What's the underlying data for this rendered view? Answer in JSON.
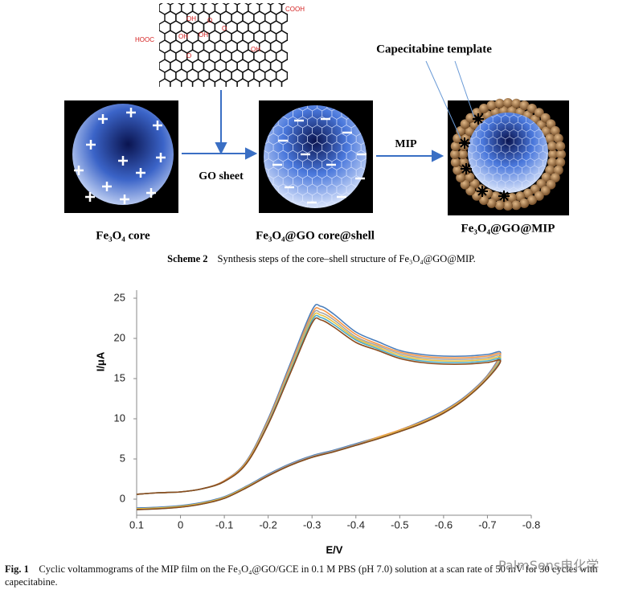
{
  "scheme": {
    "molecule_labels": [
      "COOH",
      "HOOC",
      "OH",
      "OH",
      "OH",
      "OH",
      "O",
      "O",
      "O"
    ],
    "arrow_go": "GO sheet",
    "arrow_mip": "MIP",
    "template_label": "Capecitabine template",
    "stage_labels": [
      "Fe₃O₄ core",
      "Fe₃O₄@GO core@shell",
      "Fe₃O₄@GO@MIP"
    ],
    "caption_tag": "Scheme 2",
    "caption_text": "Synthesis steps of the core–shell structure of Fe₃O₄@GO@MIP."
  },
  "chart_data": {
    "type": "line",
    "y_label": "I/μA",
    "x_label": "E/V",
    "x": [
      0.1,
      0.05,
      0,
      -0.05,
      -0.1,
      -0.15,
      -0.2,
      -0.25,
      -0.3,
      -0.32,
      -0.35,
      -0.4,
      -0.45,
      -0.5,
      -0.55,
      -0.6,
      -0.65,
      -0.7,
      -0.73,
      -0.7,
      -0.65,
      -0.6,
      -0.55,
      -0.5,
      -0.45,
      -0.4,
      -0.35,
      -0.3,
      -0.25,
      -0.2,
      -0.15,
      -0.1,
      -0.05,
      0,
      0.05,
      0.1
    ],
    "xlim": [
      0.1,
      -0.8
    ],
    "xticks": [
      0.1,
      0,
      -0.1,
      -0.2,
      -0.3,
      -0.4,
      -0.5,
      -0.6,
      -0.7,
      -0.8
    ],
    "ylim": [
      -2,
      26
    ],
    "yticks": [
      0,
      5,
      10,
      15,
      20,
      25
    ],
    "series": [
      {
        "color": "#4a7ebb",
        "values": [
          0.6,
          0.8,
          0.9,
          1.3,
          2.3,
          4.7,
          10,
          16.8,
          23.5,
          24,
          23,
          20.8,
          19.6,
          18.5,
          18,
          17.8,
          17.8,
          18,
          18.2,
          15.4,
          12.8,
          11,
          9.7,
          8.6,
          7.7,
          6.9,
          6.1,
          5.4,
          4.4,
          3.1,
          1.6,
          0.3,
          -0.4,
          -0.8,
          -1,
          -1.1
        ]
      },
      {
        "color": "#f79646",
        "values": [
          0.6,
          0.8,
          0.9,
          1.3,
          2.3,
          4.6,
          9.8,
          16.5,
          23.1,
          23.6,
          22.6,
          20.5,
          19.3,
          18.3,
          17.8,
          17.6,
          17.6,
          17.8,
          18,
          15.3,
          12.7,
          10.9,
          9.6,
          8.6,
          7.7,
          6.8,
          6,
          5.3,
          4.3,
          3,
          1.5,
          0.2,
          -0.5,
          -0.9,
          -1.1,
          -1.2
        ]
      },
      {
        "color": "#a5a5a5",
        "values": [
          0.6,
          0.8,
          0.9,
          1.3,
          2.2,
          4.5,
          9.6,
          16.2,
          22.8,
          23.2,
          22.3,
          20.2,
          19.1,
          18.1,
          17.6,
          17.4,
          17.4,
          17.6,
          17.8,
          15.2,
          12.6,
          10.8,
          9.5,
          8.5,
          7.6,
          6.8,
          6,
          5.3,
          4.3,
          3,
          1.5,
          0.2,
          -0.5,
          -0.9,
          -1.1,
          -1.2
        ]
      },
      {
        "color": "#e8c040",
        "values": [
          0.6,
          0.8,
          0.9,
          1.3,
          2.2,
          4.5,
          9.5,
          16,
          22.5,
          22.9,
          22,
          20,
          18.9,
          17.9,
          17.4,
          17.2,
          17.2,
          17.4,
          17.6,
          15.1,
          12.6,
          10.8,
          9.5,
          8.5,
          7.6,
          6.7,
          5.9,
          5.2,
          4.2,
          2.9,
          1.5,
          0.2,
          -0.5,
          -0.9,
          -1.1,
          -1.2
        ]
      },
      {
        "color": "#4bacc6",
        "values": [
          0.6,
          0.8,
          0.9,
          1.3,
          2.2,
          4.4,
          9.4,
          15.8,
          22.2,
          22.6,
          21.7,
          19.8,
          18.7,
          17.7,
          17.2,
          17,
          17,
          17.2,
          17.4,
          15,
          12.5,
          10.7,
          9.4,
          8.4,
          7.5,
          6.7,
          5.9,
          5.2,
          4.2,
          2.9,
          1.4,
          0.1,
          -0.6,
          -1,
          -1.2,
          -1.3
        ]
      },
      {
        "color": "#8b4a1c",
        "values": [
          0.6,
          0.8,
          0.9,
          1.3,
          2.2,
          4.4,
          9.3,
          15.6,
          21.9,
          22.3,
          21.4,
          19.5,
          18.5,
          17.5,
          17,
          16.8,
          16.8,
          17,
          17.2,
          15,
          12.5,
          10.7,
          9.4,
          8.4,
          7.5,
          6.7,
          5.9,
          5.2,
          4.2,
          2.9,
          1.4,
          0.1,
          -0.6,
          -1,
          -1.2,
          -1.3
        ]
      }
    ],
    "caption_tag": "Fig. 1",
    "caption_text": "Cyclic voltammograms of the MIP film on the Fe₃O₄@GO/GCE in 0.1 M PBS (pH 7.0) solution at a scan rate of 50 mV for 30 cycles with capecitabine."
  },
  "watermark": "PalmSens电化学"
}
